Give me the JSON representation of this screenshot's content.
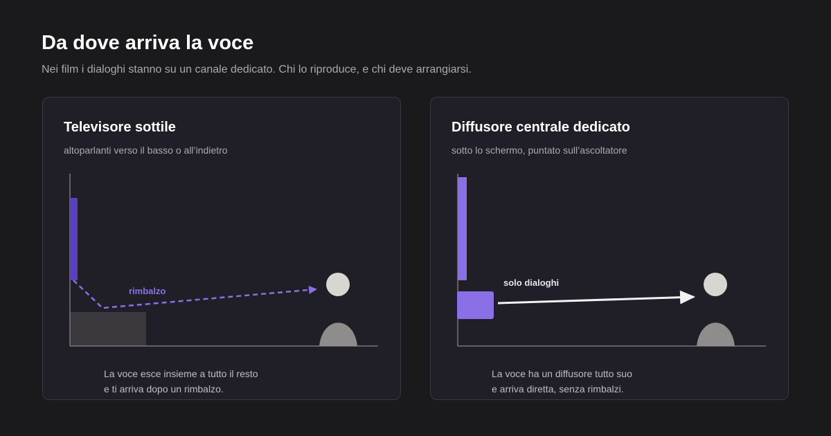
{
  "header": {
    "title": "Da dove arriva la voce",
    "subtitle": "Nei film i dialoghi stanno su un canale dedicato. Chi lo riproduce, e chi deve arrangiarsi."
  },
  "panels": [
    {
      "title": "Televisore sottile",
      "subtitle": "altoparlanti verso il basso o all’indietro",
      "annotation": "rimbalzo",
      "caption_lines": [
        "La voce esce insieme a tutto il resto",
        "e ti arriva dopo un rimbalzo."
      ]
    },
    {
      "title": "Diffusore centrale dedicato",
      "subtitle": "sotto lo schermo, puntato sull’ascoltatore",
      "annotation": "solo dialoghi",
      "caption_lines": [
        "La voce ha un diffusore tutto suo",
        "e arriva diretta, senza rimbalzi."
      ]
    }
  ],
  "colors": {
    "background": "#1a1a1c",
    "panel": "#201f27",
    "panel_border": "#3a3940",
    "accent_dark": "#5b3fc0",
    "accent": "#8b6fe6",
    "axis": "#77767c",
    "listener_head": "#d8d6d0",
    "listener_body": "#8e8d8b",
    "furniture": "#3c393e",
    "direct_arrow": "#f2f2f2"
  },
  "icons": {
    "listener": "person-icon",
    "left_path": "dashed-arrow-icon",
    "right_path": "solid-arrow-icon"
  }
}
